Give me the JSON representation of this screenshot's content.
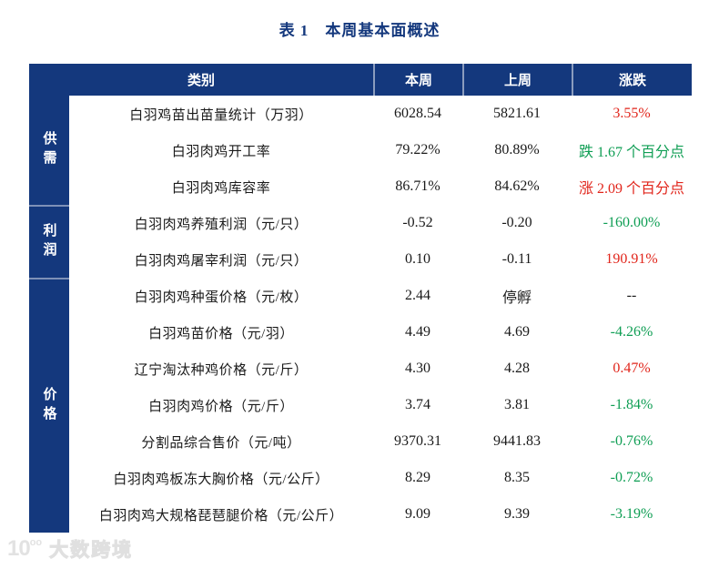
{
  "title": "表 1　本周基本面概述",
  "colors": {
    "navy": "#14387D",
    "red": "#E1251B",
    "green": "#0F9E54",
    "black": "#1a1a1a"
  },
  "table": {
    "headers": {
      "category": "类别",
      "this_week": "本周",
      "last_week": "上周",
      "change": "涨跌"
    },
    "groups": [
      {
        "label": "供需",
        "row_span": 3
      },
      {
        "label": "利润",
        "row_span": 2
      },
      {
        "label": "价格",
        "row_span": 7
      }
    ],
    "rows": [
      {
        "label": "白羽鸡苗出苗量统计（万羽）",
        "this_week": "6028.54",
        "last_week": "5821.61",
        "change": "3.55%",
        "change_color": "red"
      },
      {
        "label": "白羽肉鸡开工率",
        "this_week": "79.22%",
        "last_week": "80.89%",
        "change": "跌 1.67 个百分点",
        "change_color": "green"
      },
      {
        "label": "白羽肉鸡库容率",
        "this_week": "86.71%",
        "last_week": "84.62%",
        "change": "涨 2.09 个百分点",
        "change_color": "red"
      },
      {
        "label": "白羽肉鸡养殖利润（元/只）",
        "this_week": "-0.52",
        "last_week": "-0.20",
        "change": "-160.00%",
        "change_color": "green"
      },
      {
        "label": "白羽肉鸡屠宰利润（元/只）",
        "this_week": "0.10",
        "last_week": "-0.11",
        "change": "190.91%",
        "change_color": "red"
      },
      {
        "label": "白羽肉鸡种蛋价格（元/枚）",
        "this_week": "2.44",
        "last_week": "停孵",
        "change": "--",
        "change_color": "black"
      },
      {
        "label": "白羽鸡苗价格（元/羽）",
        "this_week": "4.49",
        "last_week": "4.69",
        "change": "-4.26%",
        "change_color": "green"
      },
      {
        "label": "辽宁淘汰种鸡价格（元/斤）",
        "this_week": "4.30",
        "last_week": "4.28",
        "change": "0.47%",
        "change_color": "red"
      },
      {
        "label": "白羽肉鸡价格（元/斤）",
        "this_week": "3.74",
        "last_week": "3.81",
        "change": "-1.84%",
        "change_color": "green"
      },
      {
        "label": "分割品综合售价（元/吨）",
        "this_week": "9370.31",
        "last_week": "9441.83",
        "change": "-0.76%",
        "change_color": "green"
      },
      {
        "label": "白羽肉鸡板冻大胸价格（元/公斤）",
        "this_week": "8.29",
        "last_week": "8.35",
        "change": "-0.72%",
        "change_color": "green"
      },
      {
        "label": "白羽肉鸡大规格琵琶腿价格（元/公斤）",
        "this_week": "9.09",
        "last_week": "9.39",
        "change": "-3.19%",
        "change_color": "green"
      }
    ]
  },
  "chart_data": {
    "type": "table",
    "title": "表 1　本周基本面概述",
    "columns": [
      "类别",
      "本周",
      "上周",
      "涨跌"
    ],
    "row_groups": {
      "供需": [
        0,
        1,
        2
      ],
      "利润": [
        3,
        4
      ],
      "价格": [
        5,
        6,
        7,
        8,
        9,
        10,
        11
      ]
    },
    "rows": [
      [
        "白羽鸡苗出苗量统计（万羽）",
        "6028.54",
        "5821.61",
        "3.55%"
      ],
      [
        "白羽肉鸡开工率",
        "79.22%",
        "80.89%",
        "跌 1.67 个百分点"
      ],
      [
        "白羽肉鸡库容率",
        "86.71%",
        "84.62%",
        "涨 2.09 个百分点"
      ],
      [
        "白羽肉鸡养殖利润（元/只）",
        "-0.52",
        "-0.20",
        "-160.00%"
      ],
      [
        "白羽肉鸡屠宰利润（元/只）",
        "0.10",
        "-0.11",
        "190.91%"
      ],
      [
        "白羽肉鸡种蛋价格（元/枚）",
        "2.44",
        "停孵",
        "--"
      ],
      [
        "白羽鸡苗价格（元/羽）",
        "4.49",
        "4.69",
        "-4.26%"
      ],
      [
        "辽宁淘汰种鸡价格（元/斤）",
        "4.30",
        "4.28",
        "0.47%"
      ],
      [
        "白羽肉鸡价格（元/斤）",
        "3.74",
        "3.81",
        "-1.84%"
      ],
      [
        "分割品综合售价（元/吨）",
        "9370.31",
        "9441.83",
        "-0.76%"
      ],
      [
        "白羽肉鸡板冻大胸价格（元/公斤）",
        "8.29",
        "8.35",
        "-0.72%"
      ],
      [
        "白羽肉鸡大规格琵琶腿价格（元/公斤）",
        "9.09",
        "9.39",
        "-3.19%"
      ]
    ]
  },
  "watermark": {
    "logo_main": "10",
    "logo_sup": "oo",
    "text": "大数跨境"
  }
}
